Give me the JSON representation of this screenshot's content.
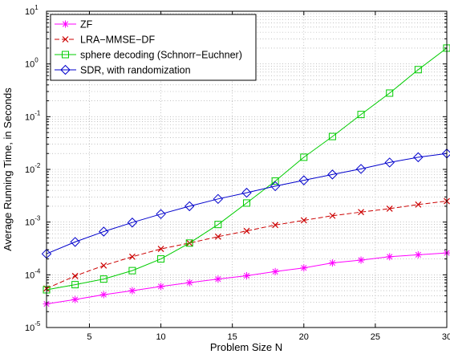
{
  "chart_data": {
    "type": "line",
    "xlabel": "Problem Size N",
    "ylabel": "Average Running Time, in Seconds",
    "xlim": [
      2,
      30
    ],
    "ylim": [
      1e-05,
      10
    ],
    "yscale": "log",
    "grid": true,
    "legend_position": "top-left",
    "x_ticks": [
      5,
      10,
      15,
      20,
      25,
      30
    ],
    "y_ticks": [
      {
        "value": 1e-05,
        "base": "10",
        "exp": "-5"
      },
      {
        "value": 0.0001,
        "base": "10",
        "exp": "-4"
      },
      {
        "value": 0.001,
        "base": "10",
        "exp": "-3"
      },
      {
        "value": 0.01,
        "base": "10",
        "exp": "-2"
      },
      {
        "value": 0.1,
        "base": "10",
        "exp": "-1"
      },
      {
        "value": 1,
        "base": "10",
        "exp": "0"
      },
      {
        "value": 10,
        "base": "10",
        "exp": "1"
      }
    ],
    "x": [
      2,
      4,
      6,
      8,
      10,
      12,
      14,
      16,
      18,
      20,
      22,
      24,
      26,
      28,
      30
    ],
    "series": [
      {
        "name": "ZF",
        "color": "#ff00ff",
        "marker": "asterisk",
        "dash": "solid",
        "values": [
          2.8e-05,
          3.4e-05,
          4.2e-05,
          5e-05,
          6e-05,
          7.1e-05,
          8.3e-05,
          9.6e-05,
          0.000115,
          0.000135,
          0.000168,
          0.00019,
          0.00022,
          0.00024,
          0.00026
        ]
      },
      {
        "name": "LRA−MMSE−DF",
        "color": "#cc0000",
        "marker": "x",
        "dash": "dashed",
        "values": [
          5.5e-05,
          9.5e-05,
          0.00015,
          0.00022,
          0.00031,
          0.0004,
          0.00053,
          0.00068,
          0.00088,
          0.00108,
          0.00132,
          0.00155,
          0.0018,
          0.00215,
          0.0025
        ]
      },
      {
        "name": "sphere decoding (Schnorr−Euchner)",
        "color": "#00cc00",
        "marker": "square",
        "dash": "solid",
        "values": [
          5.2e-05,
          6.5e-05,
          8.3e-05,
          0.00012,
          0.0002,
          0.0004,
          0.0009,
          0.0023,
          0.006,
          0.017,
          0.042,
          0.11,
          0.28,
          0.78,
          2.0
        ]
      },
      {
        "name": "SDR, with randomization",
        "color": "#0000cc",
        "marker": "diamond",
        "dash": "solid",
        "values": [
          0.00025,
          0.00042,
          0.00066,
          0.00098,
          0.00142,
          0.002,
          0.00275,
          0.0036,
          0.0048,
          0.0062,
          0.008,
          0.0102,
          0.0135,
          0.017,
          0.02
        ]
      }
    ]
  }
}
